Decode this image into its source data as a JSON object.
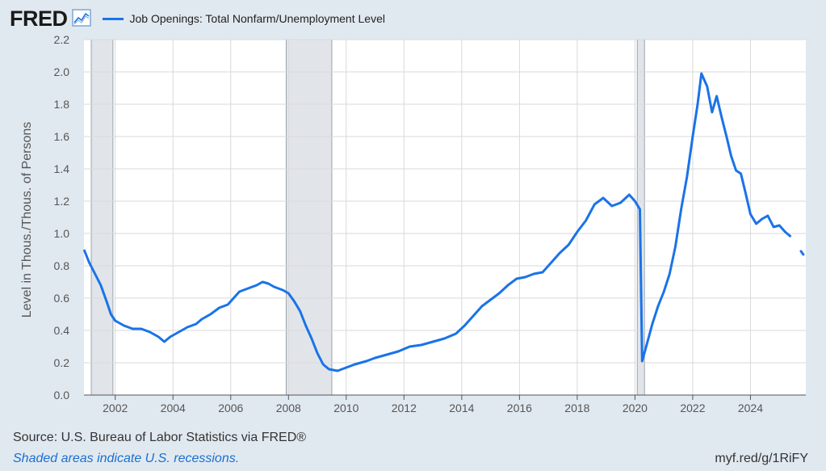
{
  "header": {
    "logo": "FRED",
    "logo_icon": "chart-line-icon",
    "series_label": "Job Openings: Total Nonfarm/Unemployment Level"
  },
  "footer": {
    "source": "Source: U.S. Bureau of Labor Statistics via FRED®",
    "note": "Shaded areas indicate U.S. recessions.",
    "shortlink": "myf.red/g/1RiFY"
  },
  "colors": {
    "line": "#1a73e8",
    "background": "#e1e9f0",
    "plot_background": "#ffffff",
    "recession": "#e1e5ea",
    "grid": "#d9d9d9"
  },
  "chart_data": {
    "type": "line",
    "title": "",
    "xlabel": "",
    "ylabel": "Level in Thous./Thous. of Persons",
    "xlim": [
      2000.917,
      2025.917
    ],
    "ylim": [
      0,
      2.2
    ],
    "yticks": [
      "0.0",
      "0.2",
      "0.4",
      "0.6",
      "0.8",
      "1.0",
      "1.2",
      "1.4",
      "1.6",
      "1.8",
      "2.0",
      "2.2"
    ],
    "xticks": [
      "2002",
      "2004",
      "2006",
      "2008",
      "2010",
      "2012",
      "2014",
      "2016",
      "2018",
      "2020",
      "2022",
      "2024"
    ],
    "grid": true,
    "legend": "top-left",
    "recessions": [
      [
        2001.17,
        2001.92
      ],
      [
        2007.92,
        2009.5
      ],
      [
        2020.08,
        2020.33
      ]
    ],
    "series": [
      {
        "name": "Job Openings: Total Nonfarm/Unemployment Level",
        "points": [
          [
            2000.92,
            0.9
          ],
          [
            2001.1,
            0.82
          ],
          [
            2001.3,
            0.75
          ],
          [
            2001.5,
            0.68
          ],
          [
            2001.7,
            0.58
          ],
          [
            2001.85,
            0.5
          ],
          [
            2002.0,
            0.46
          ],
          [
            2002.3,
            0.43
          ],
          [
            2002.6,
            0.41
          ],
          [
            2002.9,
            0.41
          ],
          [
            2003.2,
            0.39
          ],
          [
            2003.5,
            0.36
          ],
          [
            2003.7,
            0.33
          ],
          [
            2003.9,
            0.36
          ],
          [
            2004.2,
            0.39
          ],
          [
            2004.5,
            0.42
          ],
          [
            2004.8,
            0.44
          ],
          [
            2005.0,
            0.47
          ],
          [
            2005.3,
            0.5
          ],
          [
            2005.6,
            0.54
          ],
          [
            2005.9,
            0.56
          ],
          [
            2006.1,
            0.6
          ],
          [
            2006.3,
            0.64
          ],
          [
            2006.6,
            0.66
          ],
          [
            2006.9,
            0.68
          ],
          [
            2007.1,
            0.7
          ],
          [
            2007.3,
            0.69
          ],
          [
            2007.5,
            0.67
          ],
          [
            2007.8,
            0.65
          ],
          [
            2008.0,
            0.63
          ],
          [
            2008.2,
            0.58
          ],
          [
            2008.4,
            0.52
          ],
          [
            2008.6,
            0.43
          ],
          [
            2008.8,
            0.35
          ],
          [
            2009.0,
            0.26
          ],
          [
            2009.2,
            0.19
          ],
          [
            2009.4,
            0.16
          ],
          [
            2009.7,
            0.15
          ],
          [
            2010.0,
            0.17
          ],
          [
            2010.3,
            0.19
          ],
          [
            2010.7,
            0.21
          ],
          [
            2011.0,
            0.23
          ],
          [
            2011.4,
            0.25
          ],
          [
            2011.8,
            0.27
          ],
          [
            2012.2,
            0.3
          ],
          [
            2012.6,
            0.31
          ],
          [
            2013.0,
            0.33
          ],
          [
            2013.4,
            0.35
          ],
          [
            2013.8,
            0.38
          ],
          [
            2014.1,
            0.43
          ],
          [
            2014.4,
            0.49
          ],
          [
            2014.7,
            0.55
          ],
          [
            2015.0,
            0.59
          ],
          [
            2015.3,
            0.63
          ],
          [
            2015.6,
            0.68
          ],
          [
            2015.9,
            0.72
          ],
          [
            2016.2,
            0.73
          ],
          [
            2016.5,
            0.75
          ],
          [
            2016.8,
            0.76
          ],
          [
            2017.1,
            0.82
          ],
          [
            2017.4,
            0.88
          ],
          [
            2017.7,
            0.93
          ],
          [
            2018.0,
            1.01
          ],
          [
            2018.3,
            1.08
          ],
          [
            2018.6,
            1.18
          ],
          [
            2018.9,
            1.22
          ],
          [
            2019.2,
            1.17
          ],
          [
            2019.5,
            1.19
          ],
          [
            2019.8,
            1.24
          ],
          [
            2020.0,
            1.2
          ],
          [
            2020.17,
            1.15
          ],
          [
            2020.25,
            0.21
          ],
          [
            2020.42,
            0.32
          ],
          [
            2020.6,
            0.44
          ],
          [
            2020.8,
            0.55
          ],
          [
            2021.0,
            0.64
          ],
          [
            2021.2,
            0.75
          ],
          [
            2021.4,
            0.92
          ],
          [
            2021.6,
            1.15
          ],
          [
            2021.8,
            1.35
          ],
          [
            2022.0,
            1.6
          ],
          [
            2022.17,
            1.8
          ],
          [
            2022.3,
            1.99
          ],
          [
            2022.5,
            1.91
          ],
          [
            2022.67,
            1.75
          ],
          [
            2022.83,
            1.85
          ],
          [
            2023.0,
            1.72
          ],
          [
            2023.17,
            1.6
          ],
          [
            2023.33,
            1.48
          ],
          [
            2023.5,
            1.39
          ],
          [
            2023.67,
            1.37
          ],
          [
            2023.83,
            1.25
          ],
          [
            2024.0,
            1.12
          ],
          [
            2024.2,
            1.06
          ],
          [
            2024.4,
            1.09
          ],
          [
            2024.6,
            1.11
          ],
          [
            2024.8,
            1.04
          ],
          [
            2025.0,
            1.05
          ],
          [
            2025.2,
            1.01
          ],
          [
            2025.4,
            0.98
          ]
        ],
        "trailing_points": [
          [
            2025.75,
            0.89
          ],
          [
            2025.83,
            0.87
          ]
        ]
      }
    ]
  }
}
